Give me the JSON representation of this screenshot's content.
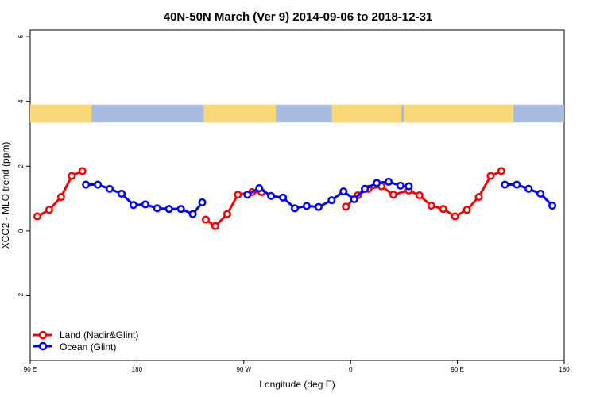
{
  "chart_data": {
    "type": "line",
    "title": "40N-50N March (Ver 9)   2014-09-06 to 2018-12-31",
    "xlabel": "Longitude (deg E)",
    "ylabel": "XCO2 - MLO trend (ppm)",
    "xlim": [
      90,
      540
    ],
    "ylim": [
      -4,
      6.2
    ],
    "x_ticks": [
      {
        "value": 90,
        "label": "90 E"
      },
      {
        "value": 180,
        "label": "180"
      },
      {
        "value": 270,
        "label": "90 W"
      },
      {
        "value": 360,
        "label": "0"
      },
      {
        "value": 450,
        "label": "90 E"
      },
      {
        "value": 540,
        "label": "180"
      }
    ],
    "y_ticks": [
      {
        "value": -2,
        "label": "-2"
      },
      {
        "value": 0,
        "label": "0"
      },
      {
        "value": 2,
        "label": "2"
      },
      {
        "value": 4,
        "label": "4"
      },
      {
        "value": 6,
        "label": "6"
      }
    ],
    "map_band": {
      "ymin": 3.35,
      "ymax": 3.9,
      "land_color": "#F8D878",
      "ocean_color": "#A8BCE0"
    },
    "series": [
      {
        "name": "Land (Nadir&Glint)",
        "color": "#FF0000",
        "segments": [
          [
            [
              96,
              0.45
            ],
            [
              106,
              0.65
            ],
            [
              116,
              1.05
            ],
            [
              125,
              1.7
            ],
            [
              134,
              1.85
            ]
          ],
          [
            [
              238,
              0.35
            ],
            [
              246,
              0.15
            ],
            [
              256,
              0.52
            ],
            [
              265,
              1.12
            ],
            [
              277,
              1.2
            ],
            [
              285,
              1.2
            ]
          ],
          [
            [
              356,
              0.75
            ],
            [
              366,
              1.1
            ],
            [
              375,
              1.3
            ],
            [
              386,
              1.38
            ],
            [
              396,
              1.12
            ],
            [
              409,
              1.25
            ],
            [
              418,
              1.1
            ],
            [
              428,
              0.78
            ],
            [
              438,
              0.68
            ],
            [
              448,
              0.45
            ],
            [
              458,
              0.65
            ],
            [
              468,
              1.05
            ],
            [
              478,
              1.7
            ],
            [
              487,
              1.85
            ]
          ]
        ]
      },
      {
        "name": "Ocean (Glint)",
        "color": "#0000FF",
        "segments": [
          [
            [
              137,
              1.43
            ],
            [
              147,
              1.43
            ],
            [
              157,
              1.3
            ],
            [
              167,
              1.15
            ],
            [
              177,
              0.8
            ],
            [
              187,
              0.82
            ],
            [
              197,
              0.7
            ],
            [
              207,
              0.68
            ],
            [
              217,
              0.68
            ],
            [
              227,
              0.52
            ],
            [
              235,
              0.88
            ]
          ],
          [
            [
              273,
              1.12
            ],
            [
              283,
              1.32
            ],
            [
              293,
              1.08
            ],
            [
              303,
              1.03
            ],
            [
              313,
              0.7
            ],
            [
              323,
              0.77
            ],
            [
              333,
              0.74
            ],
            [
              344,
              0.95
            ],
            [
              354,
              1.22
            ],
            [
              363,
              0.98
            ],
            [
              372,
              1.3
            ],
            [
              382,
              1.48
            ],
            [
              392,
              1.52
            ],
            [
              402,
              1.4
            ],
            [
              409,
              1.38
            ]
          ],
          [
            [
              490,
              1.43
            ],
            [
              500,
              1.43
            ],
            [
              510,
              1.3
            ],
            [
              520,
              1.15
            ],
            [
              530,
              0.78
            ]
          ]
        ]
      }
    ],
    "legend": {
      "position": "bottom-left"
    }
  }
}
